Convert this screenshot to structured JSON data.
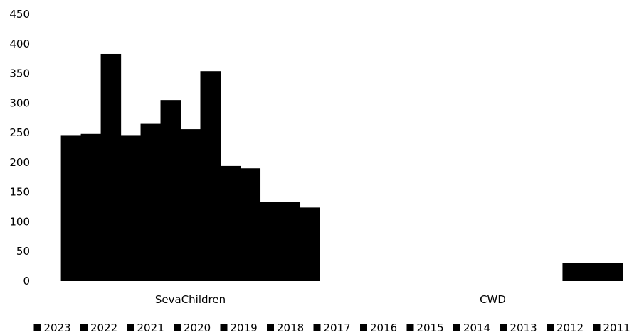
{
  "chart_data": {
    "type": "bar",
    "title": "",
    "xlabel": "",
    "ylabel": "",
    "ylim": [
      0,
      450
    ],
    "yticks": [
      0,
      50,
      100,
      150,
      200,
      250,
      300,
      350,
      400,
      450
    ],
    "grid": false,
    "legend_position": "bottom",
    "categories": [
      "SevaChildren",
      "CWD"
    ],
    "bar_color": "#000000",
    "series": [
      {
        "name": "2023",
        "values": [
          246,
          0
        ]
      },
      {
        "name": "2022",
        "values": [
          248,
          0
        ]
      },
      {
        "name": "2021",
        "values": [
          383,
          0
        ]
      },
      {
        "name": "2020",
        "values": [
          246,
          0
        ]
      },
      {
        "name": "2019",
        "values": [
          265,
          0
        ]
      },
      {
        "name": "2018",
        "values": [
          305,
          0
        ]
      },
      {
        "name": "2017",
        "values": [
          256,
          0
        ]
      },
      {
        "name": "2016",
        "values": [
          354,
          0
        ]
      },
      {
        "name": "2015",
        "values": [
          194,
          0
        ]
      },
      {
        "name": "2014",
        "values": [
          190,
          0
        ]
      },
      {
        "name": "2013",
        "values": [
          134,
          30
        ]
      },
      {
        "name": "2012",
        "values": [
          134,
          30
        ]
      },
      {
        "name": "2011",
        "values": [
          124,
          30
        ]
      }
    ]
  }
}
